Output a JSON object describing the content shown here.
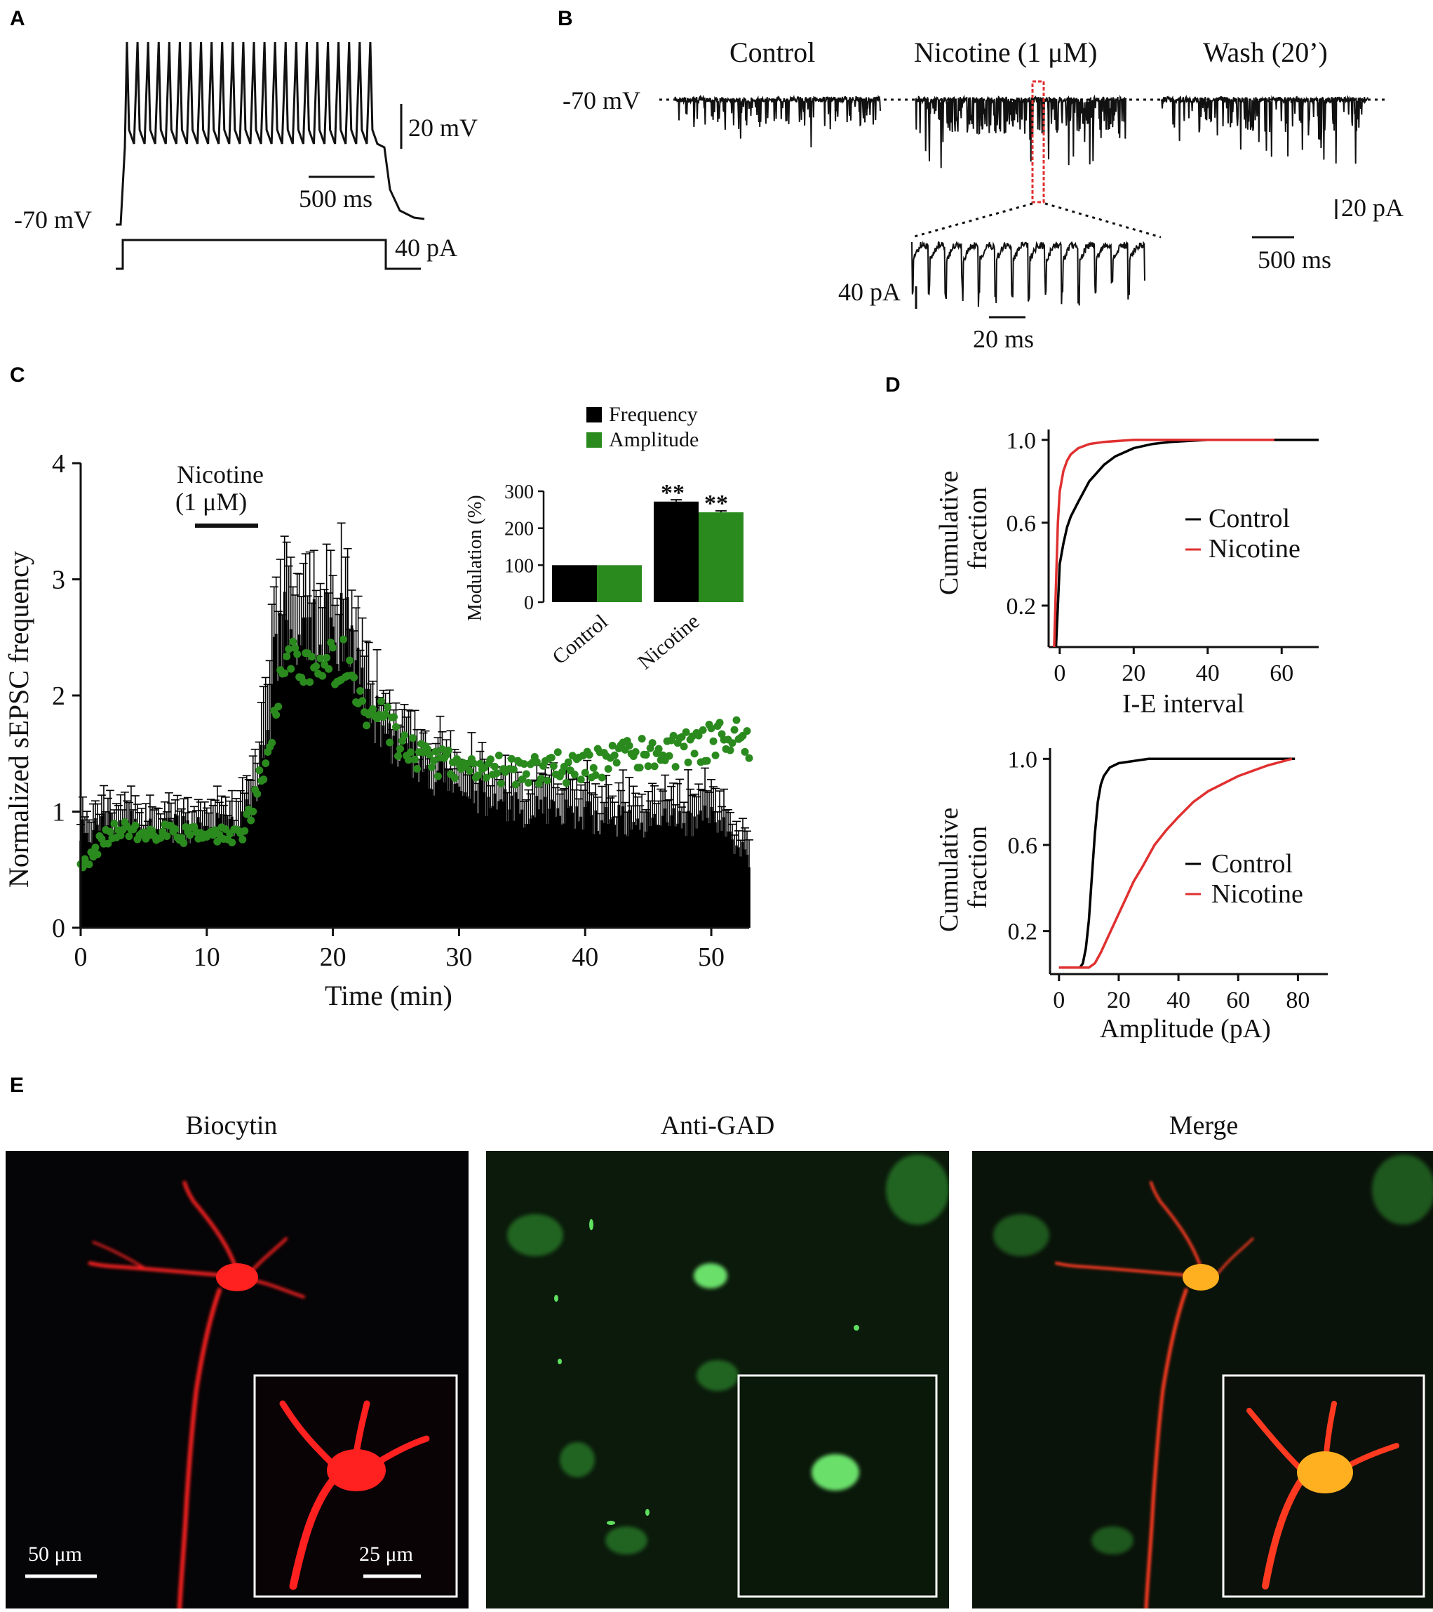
{
  "panels": {
    "A": "A",
    "B": "B",
    "C": "C",
    "D": "D",
    "E": "E"
  },
  "panelA": {
    "baseline_label": "-70 mV",
    "scale_voltage": "20 mV",
    "scale_time": "500 ms",
    "scale_current": "40 pA",
    "spike_count": 24
  },
  "panelB": {
    "conditions": [
      "Control",
      "Nicotine (1 μM)",
      "Wash (20’)"
    ],
    "baseline_label": "-70 mV",
    "scale_current": "20 pA",
    "scale_time": "500 ms",
    "inset_scale_current": "40 pA",
    "inset_scale_time": "20 ms",
    "colors": {
      "highlight": "#e03030"
    }
  },
  "panelC": {
    "ylabel": "Normalized sEPSC frequency",
    "xlabel": "Time (min)",
    "drug_label_1": "Nicotine",
    "drug_label_2": "(1 μM)",
    "inset": {
      "legend": [
        "Frequency",
        "Amplitude"
      ],
      "ylabel": "Modulation (%)",
      "categories": [
        "Control",
        "Nicotine"
      ],
      "significance": "**"
    }
  },
  "panelD": {
    "top": {
      "ylabel_1": "Cumulative",
      "ylabel_2": "fraction",
      "xlabel": "I-E interval",
      "legend": [
        "Control",
        "Nicotine"
      ]
    },
    "bottom": {
      "ylabel_1": "Cumulative",
      "ylabel_2": "fraction",
      "xlabel": "Amplitude (pA)",
      "legend": [
        "Control",
        "Nicotine"
      ]
    }
  },
  "panelE": {
    "titles": [
      "Biocytin",
      "Anti-GAD",
      "Merge"
    ],
    "scale_main": "50 μm",
    "scale_inset": "25 μm",
    "colors": {
      "biocytin": "#ff2020",
      "gad": "#3cbf3c",
      "merge": "#ffb020"
    }
  },
  "chart_data": [
    {
      "type": "bar",
      "title": "",
      "xlabel": "Time (min)",
      "ylabel": "Normalized sEPSC frequency",
      "xlim": [
        0,
        53
      ],
      "ylim": [
        0,
        4
      ],
      "xticks": [
        0,
        10,
        20,
        30,
        40,
        50
      ],
      "yticks": [
        0,
        1,
        2,
        3,
        4
      ],
      "drug_bar": {
        "label": "Nicotine (1 μM)",
        "start": 10,
        "end": 14.5
      },
      "series": [
        {
          "name": "",
          "kind": "bar_with_error",
          "color": "#000000",
          "x": [
            0,
            2,
            4,
            6,
            8,
            10,
            12,
            13,
            14,
            15,
            15.5,
            16,
            17,
            18,
            19,
            20,
            21,
            22,
            23,
            24,
            26,
            28,
            30,
            35,
            40,
            45,
            48,
            50,
            52,
            53
          ],
          "values": [
            0.82,
            0.9,
            0.9,
            0.88,
            0.85,
            0.85,
            0.88,
            0.95,
            1.2,
            1.8,
            2.4,
            2.5,
            2.6,
            2.7,
            2.6,
            2.5,
            2.6,
            2.2,
            1.9,
            1.7,
            1.5,
            1.3,
            1.2,
            1.0,
            0.95,
            0.9,
            0.9,
            1.0,
            0.7,
            0.6
          ],
          "errors": [
            0.2,
            0.2,
            0.2,
            0.2,
            0.2,
            0.2,
            0.2,
            0.3,
            0.4,
            0.7,
            0.7,
            0.6,
            0.7,
            0.6,
            0.6,
            0.5,
            0.6,
            0.4,
            0.4,
            0.3,
            0.3,
            0.3,
            0.3,
            0.3,
            0.3,
            0.25,
            0.3,
            0.3,
            0.2,
            0.2
          ]
        },
        {
          "name": "",
          "kind": "points",
          "color": "#2a8a1e",
          "x": [
            0,
            2,
            4,
            6,
            8,
            10,
            12,
            13,
            14,
            15,
            15.5,
            16,
            17,
            18,
            19,
            20,
            21,
            22,
            23,
            24,
            26,
            28,
            30,
            35,
            40,
            45,
            48,
            50,
            52,
            53
          ],
          "values": [
            0.5,
            0.8,
            0.85,
            0.82,
            0.8,
            0.78,
            0.8,
            0.85,
            1.2,
            1.5,
            1.8,
            2.4,
            2.3,
            2.35,
            2.2,
            2.25,
            2.3,
            1.9,
            1.75,
            1.8,
            1.5,
            1.45,
            1.4,
            1.35,
            1.4,
            1.5,
            1.55,
            1.6,
            1.65,
            1.6
          ]
        }
      ]
    },
    {
      "type": "bar",
      "title": "",
      "ylabel": "Modulation (%)",
      "categories": [
        "Control",
        "Nicotine"
      ],
      "ylim": [
        0,
        300
      ],
      "yticks": [
        0,
        100,
        200,
        300
      ],
      "series": [
        {
          "name": "Frequency",
          "values": [
            100,
            272
          ],
          "errors": [
            0,
            5
          ],
          "color": "#000000"
        },
        {
          "name": "Amplitude",
          "values": [
            100,
            243
          ],
          "errors": [
            0,
            4
          ],
          "color": "#2a8a1e"
        }
      ]
    },
    {
      "type": "line",
      "title": "",
      "xlabel": "I-E interval",
      "ylabel": "Cumulative fraction",
      "xlim": [
        -3,
        70
      ],
      "ylim": [
        0,
        1.05
      ],
      "xticks": [
        0,
        20,
        40,
        60
      ],
      "yticks": [
        0.2,
        0.6,
        1.0
      ],
      "series": [
        {
          "name": "Control",
          "color": "#000000",
          "x": [
            -1,
            -0.5,
            0,
            1,
            2,
            3,
            5,
            8,
            12,
            15,
            20,
            25,
            30,
            40,
            60,
            70
          ],
          "values": [
            0,
            0.2,
            0.4,
            0.5,
            0.58,
            0.63,
            0.7,
            0.8,
            0.88,
            0.92,
            0.96,
            0.98,
            0.99,
            1.0,
            1.0,
            1.0
          ]
        },
        {
          "name": "Nicotine",
          "color": "#e03030",
          "x": [
            -1.5,
            -1,
            -0.5,
            0,
            1,
            2,
            3,
            5,
            8,
            12,
            20,
            30,
            58
          ],
          "values": [
            0,
            0.3,
            0.6,
            0.75,
            0.85,
            0.9,
            0.93,
            0.96,
            0.98,
            0.99,
            1.0,
            1.0,
            1.0
          ]
        }
      ]
    },
    {
      "type": "line",
      "title": "",
      "xlabel": "Amplitude (pA)",
      "ylabel": "Cumulative fraction",
      "xlim": [
        -3,
        90
      ],
      "ylim": [
        0,
        1.05
      ],
      "xticks": [
        0,
        20,
        40,
        60,
        80
      ],
      "yticks": [
        0.2,
        0.6,
        1.0
      ],
      "series": [
        {
          "name": "Control",
          "color": "#000000",
          "x": [
            0,
            7,
            8,
            9,
            10,
            11,
            12,
            13,
            14,
            15,
            17,
            20,
            25,
            30,
            40,
            60,
            79
          ],
          "values": [
            0.03,
            0.03,
            0.05,
            0.12,
            0.25,
            0.45,
            0.65,
            0.8,
            0.88,
            0.92,
            0.96,
            0.98,
            0.99,
            1.0,
            1.0,
            1.0,
            1.0
          ]
        },
        {
          "name": "Nicotine",
          "color": "#e03030",
          "x": [
            0,
            10,
            12,
            14,
            16,
            18,
            20,
            22,
            25,
            28,
            32,
            36,
            40,
            45,
            50,
            60,
            70,
            78
          ],
          "values": [
            0.03,
            0.03,
            0.05,
            0.1,
            0.16,
            0.22,
            0.28,
            0.34,
            0.43,
            0.5,
            0.6,
            0.67,
            0.73,
            0.8,
            0.85,
            0.92,
            0.97,
            1.0
          ]
        }
      ]
    }
  ]
}
